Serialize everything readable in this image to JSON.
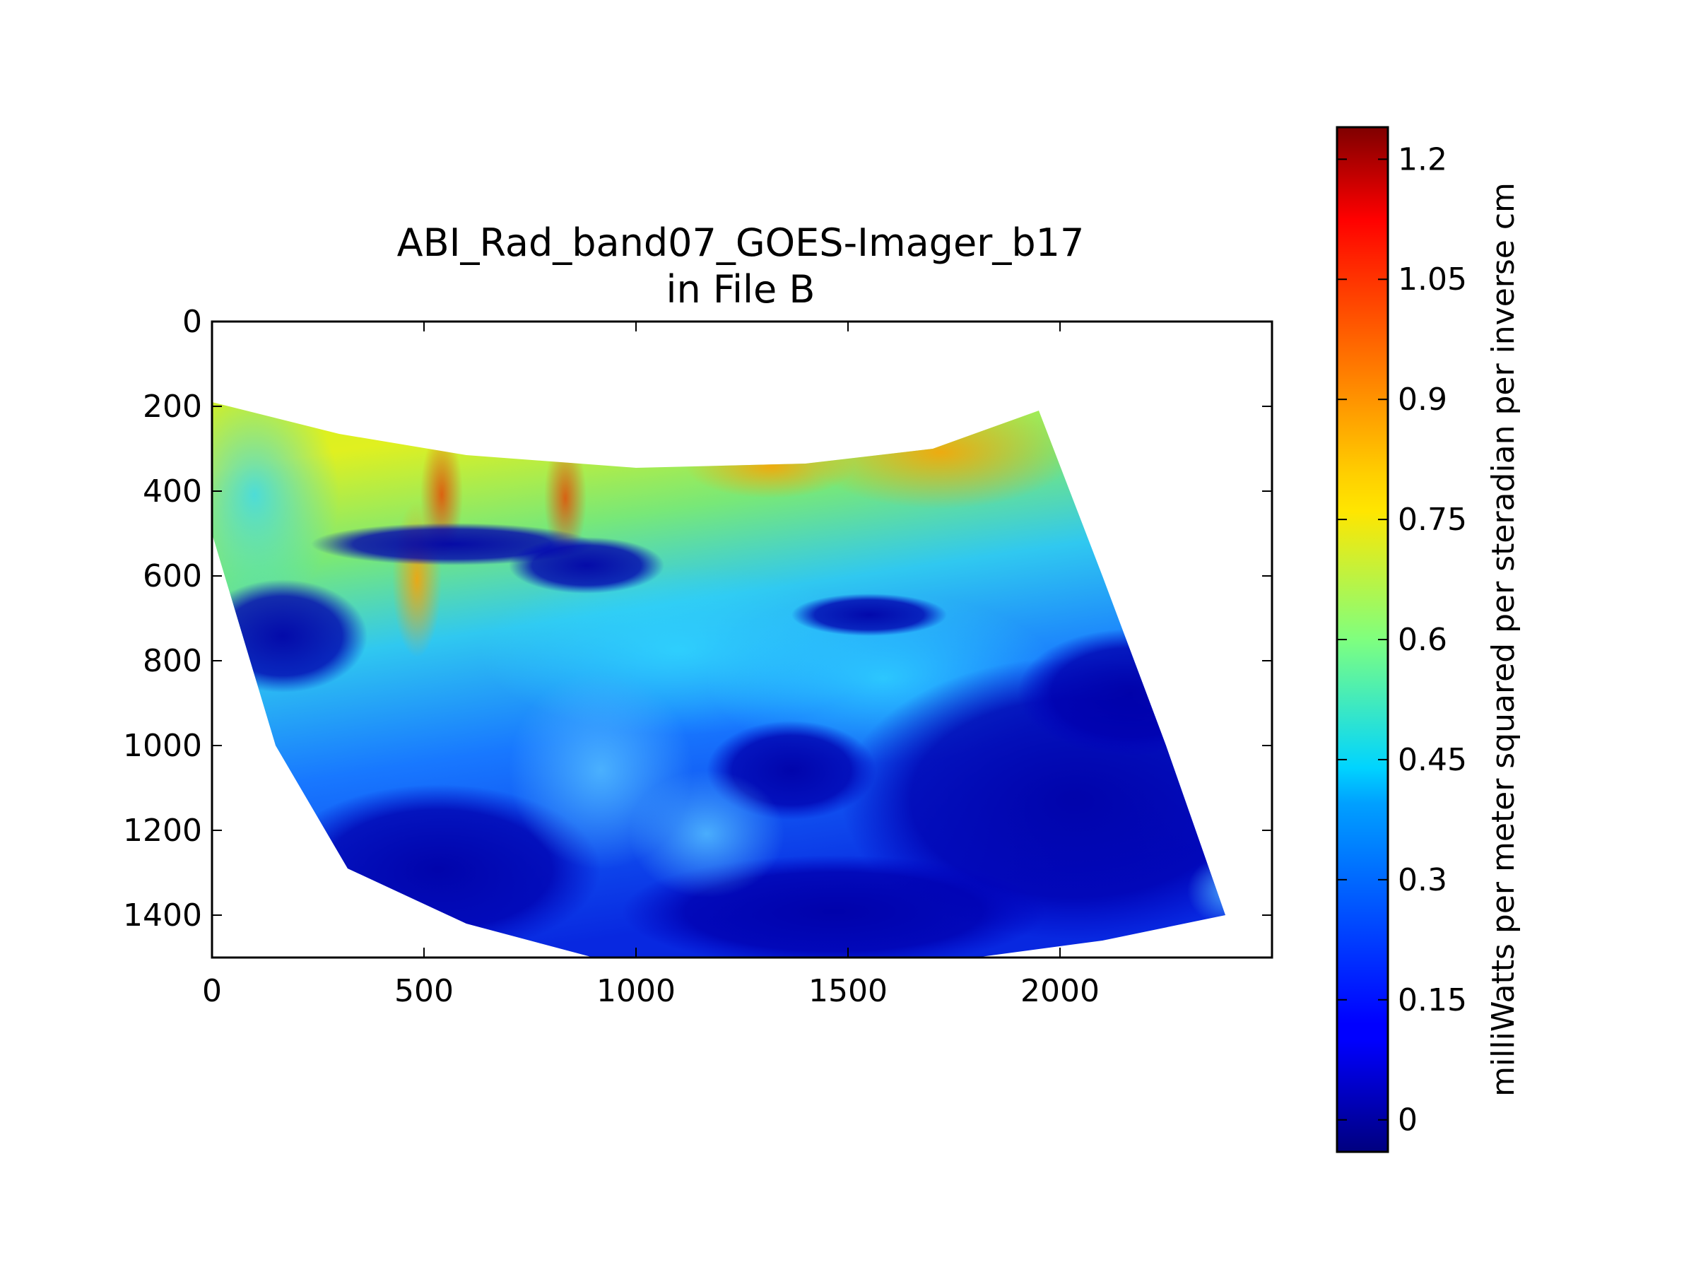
{
  "chart_data": {
    "type": "heatmap",
    "title_lines": [
      "ABI_Rad_band07_GOES-Imager_b17",
      "in File B"
    ],
    "xlabel": "",
    "ylabel": "",
    "xlim": [
      0,
      2500
    ],
    "ylim": [
      1500,
      0
    ],
    "y_inverted": true,
    "xticks": [
      0,
      500,
      1000,
      1500,
      2000
    ],
    "xtick_labels": [
      "0",
      "500",
      "1000",
      "1500",
      "2000"
    ],
    "yticks": [
      0,
      200,
      400,
      600,
      800,
      1000,
      1200,
      1400
    ],
    "ytick_labels": [
      "0",
      "200",
      "400",
      "600",
      "800",
      "1000",
      "1200",
      "1400"
    ],
    "grid": false,
    "colormap": "jet",
    "colorbar": {
      "label": "milliWatts per meter squared per steradian per inverse cm",
      "range": [
        -0.04,
        1.24
      ],
      "ticks": [
        0,
        0.15,
        0.3,
        0.45,
        0.6,
        0.75,
        0.9,
        1.05,
        1.2
      ],
      "tick_labels": [
        "0",
        "0.15",
        "0.3",
        "0.45",
        "0.6",
        "0.75",
        "0.9",
        "1.05",
        "1.2"
      ],
      "placement": "right"
    },
    "swath_outline": {
      "top_edge": [
        [
          0,
          190
        ],
        [
          300,
          265
        ],
        [
          600,
          315
        ],
        [
          1000,
          345
        ],
        [
          1400,
          335
        ],
        [
          1700,
          300
        ],
        [
          1950,
          210
        ]
      ],
      "right_edge": [
        [
          1950,
          210
        ],
        [
          2100,
          600
        ],
        [
          2250,
          1000
        ],
        [
          2390,
          1400
        ]
      ],
      "bottom_edge": [
        [
          2390,
          1400
        ],
        [
          2100,
          1460
        ],
        [
          1800,
          1500
        ],
        [
          1500,
          1500
        ],
        [
          1200,
          1500
        ],
        [
          900,
          1500
        ],
        [
          600,
          1420
        ],
        [
          320,
          1290
        ]
      ],
      "left_edge": [
        [
          320,
          1290
        ],
        [
          150,
          1000
        ],
        [
          30,
          600
        ],
        [
          0,
          500
        ]
      ]
    }
  }
}
